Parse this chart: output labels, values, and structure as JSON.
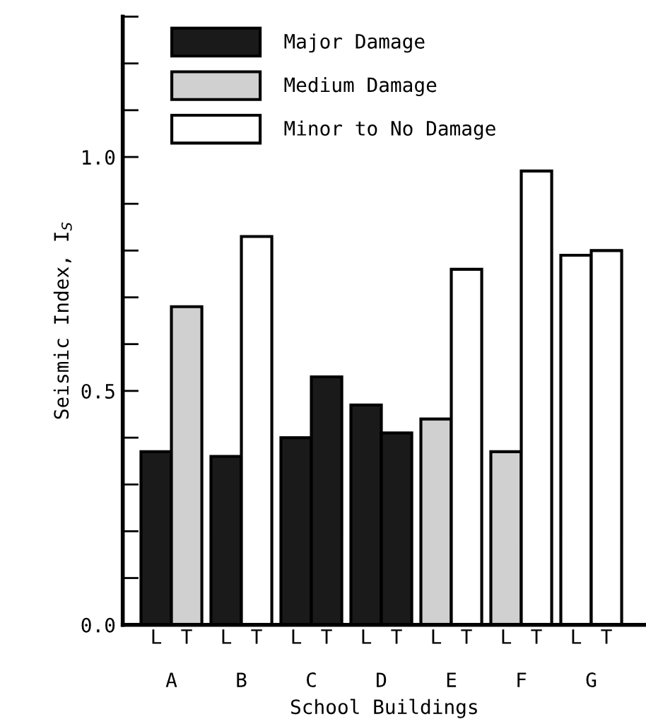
{
  "chart_data": {
    "type": "bar",
    "xlabel": "School Buildings",
    "ylabel": "Seismic Index, I$_{S}$",
    "categories": [
      "L",
      "T",
      "L",
      "T",
      "L",
      "T",
      "L",
      "T",
      "L",
      "T",
      "L",
      "T",
      "L",
      "T"
    ],
    "series": [
      {
        "name": "Major Damage",
        "color": "#1a1a1a",
        "values": [
          0.37,
          null,
          0.36,
          null,
          0.4,
          0.53,
          0.47,
          0.41,
          null,
          null,
          null,
          null,
          null,
          null
        ]
      },
      {
        "name": "Medium Damage",
        "color": "#d0d0d0",
        "values": [
          null,
          0.68,
          null,
          null,
          null,
          null,
          null,
          null,
          0.44,
          null,
          0.37,
          null,
          null,
          null
        ]
      },
      {
        "name": "Minor to No Damage",
        "color": "#ffffff",
        "values": [
          null,
          null,
          null,
          0.83,
          null,
          null,
          null,
          null,
          null,
          0.76,
          null,
          0.97,
          0.79,
          0.8
        ]
      }
    ],
    "annotations": [
      "A",
      "B",
      "C",
      "D",
      "E",
      "F",
      "G"
    ],
    "ylim": [
      0,
      1.3
    ],
    "yticks": [
      {
        "value": 0,
        "label": "0.0"
      },
      {
        "value": 0.1,
        "label": null
      },
      {
        "value": 0.2,
        "label": null
      },
      {
        "value": 0.3,
        "label": null
      },
      {
        "value": 0.4,
        "label": null
      },
      0.5,
      {
        "value": 0.6,
        "label": null
      },
      {
        "value": 0.7,
        "label": null
      },
      {
        "value": 0.8,
        "label": null
      },
      {
        "value": 0.9,
        "label": null
      },
      {
        "value": 1,
        "label": "1.0"
      },
      {
        "value": 1.1,
        "label": null
      },
      {
        "value": 1.2,
        "label": null
      },
      {
        "value": 1.3,
        "label": null
      }
    ],
    "legend": "top left"
  }
}
